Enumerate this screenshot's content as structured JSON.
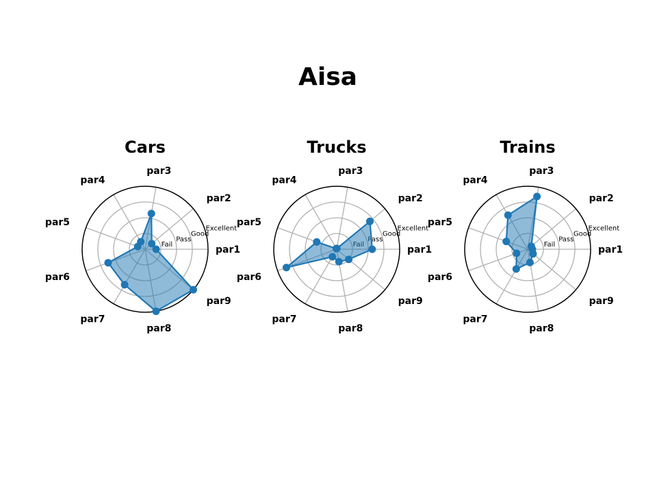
{
  "figure": {
    "suptitle": "Aisa"
  },
  "chart_data": [
    {
      "type": "radar",
      "title": "Cars",
      "categories": [
        "par1",
        "par2",
        "par3",
        "par4",
        "par5",
        "par6",
        "par7",
        "par8",
        "par9"
      ],
      "rlim": [
        0,
        4
      ],
      "rticks": [
        1,
        2,
        3
      ],
      "rtick_labels": [
        "Fail",
        "Pass",
        "Good",
        "Excellent"
      ],
      "grid": true,
      "series": [
        {
          "values": [
            0.7,
            0.55,
            2.3,
            0.55,
            0.5,
            2.5,
            2.6,
            4.0,
            4.0
          ]
        }
      ]
    },
    {
      "type": "radar",
      "title": "Trucks",
      "categories": [
        "par1",
        "par2",
        "par3",
        "par4",
        "par5",
        "par6",
        "par7",
        "par8",
        "par9"
      ],
      "rlim": [
        0,
        4
      ],
      "rticks": [
        1,
        2,
        3
      ],
      "rtick_labels": [
        "Fail",
        "Pass",
        "Good",
        "Excellent"
      ],
      "grid": true,
      "series": [
        {
          "values": [
            2.25,
            2.75,
            0.05,
            0.05,
            1.35,
            3.4,
            0.55,
            0.8,
            1.0
          ]
        }
      ]
    },
    {
      "type": "radar",
      "title": "Trains",
      "categories": [
        "par1",
        "par2",
        "par3",
        "par4",
        "par5",
        "par6",
        "par7",
        "par8",
        "par9"
      ],
      "rlim": [
        0,
        4
      ],
      "rticks": [
        1,
        2,
        3
      ],
      "rtick_labels": [
        "Fail",
        "Pass",
        "Good",
        "Excellent"
      ],
      "grid": true,
      "series": [
        {
          "values": [
            0.3,
            0.3,
            3.4,
            2.5,
            1.45,
            0.75,
            1.45,
            0.85,
            0.45
          ]
        }
      ]
    }
  ],
  "colors": {
    "series": "#1f77b4",
    "fill": "#1f77b4",
    "grid": "#b0b0b0",
    "axis": "#000000"
  }
}
